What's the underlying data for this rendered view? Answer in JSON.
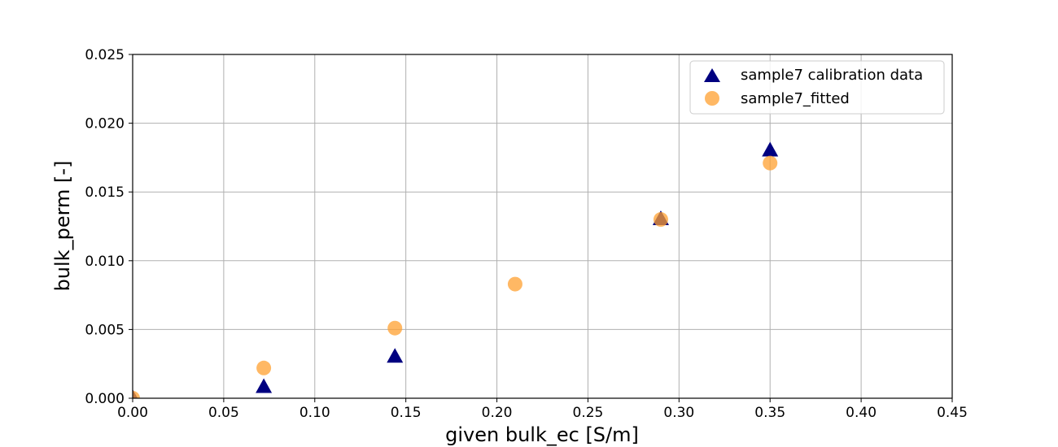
{
  "chart_data": {
    "type": "scatter",
    "title": "",
    "xlabel": "given bulk_ec [S/m]",
    "ylabel": "bulk_perm [-]",
    "xlim": [
      0,
      0.45
    ],
    "ylim": [
      0,
      0.025
    ],
    "grid": true,
    "legend_position": "top-right",
    "x_ticks": [
      "0.00",
      "0.05",
      "0.10",
      "0.15",
      "0.20",
      "0.25",
      "0.30",
      "0.35",
      "0.40",
      "0.45"
    ],
    "y_ticks": [
      "0.000",
      "0.005",
      "0.010",
      "0.015",
      "0.020",
      "0.025"
    ],
    "series": [
      {
        "name": "sample7 calibration data",
        "marker": "triangle",
        "color": "#000080",
        "x": [
          0,
          0.072,
          0.144,
          0.29,
          0.35
        ],
        "y": [
          0,
          0.0008,
          0.003,
          0.013,
          0.018
        ]
      },
      {
        "name": "sample7_fitted",
        "marker": "circle",
        "color": "#ffa030",
        "x": [
          0,
          0.072,
          0.144,
          0.21,
          0.29,
          0.35
        ],
        "y": [
          0,
          0.0022,
          0.0051,
          0.0083,
          0.013,
          0.0171
        ]
      }
    ]
  }
}
